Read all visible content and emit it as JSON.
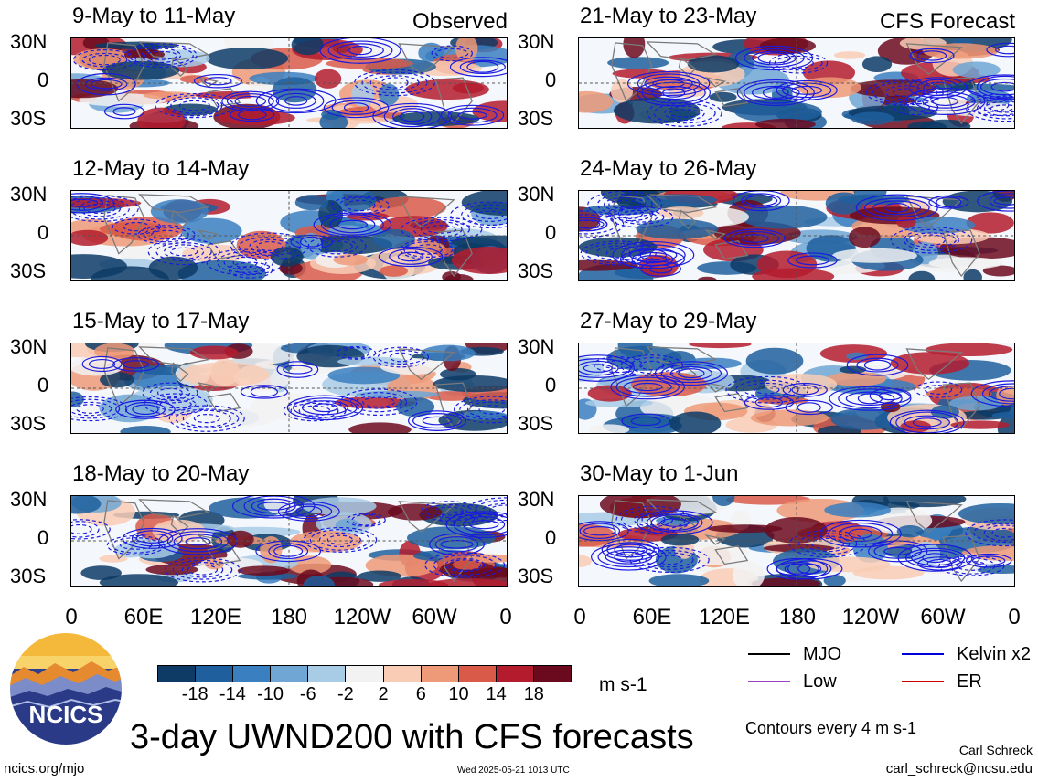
{
  "panels": [
    {
      "title": "9-May to 11-May",
      "tag": "Observed"
    },
    {
      "title": "21-May to 23-May",
      "tag": "CFS Forecast"
    },
    {
      "title": "12-May to 14-May",
      "tag": ""
    },
    {
      "title": "24-May to 26-May",
      "tag": ""
    },
    {
      "title": "15-May to 17-May",
      "tag": ""
    },
    {
      "title": "27-May to 29-May",
      "tag": ""
    },
    {
      "title": "18-May to 20-May",
      "tag": ""
    },
    {
      "title": "30-May to 1-Jun",
      "tag": ""
    }
  ],
  "lat_labels": [
    "30N",
    "0",
    "30S"
  ],
  "lon_labels": [
    "0",
    "60E",
    "120E",
    "180",
    "120W",
    "60W",
    "0"
  ],
  "colorbar": {
    "labels": [
      "-18",
      "-14",
      "-10",
      "-6",
      "-2",
      "2",
      "6",
      "10",
      "14",
      "18"
    ],
    "colors": [
      "#0d3b66",
      "#1f5f9e",
      "#3a7fbf",
      "#6fa6d3",
      "#a8cbe6",
      "#f2f2f2",
      "#f9cdb5",
      "#ee9a78",
      "#d95a49",
      "#b41c2e",
      "#6b0a1f"
    ],
    "units": "m s-1"
  },
  "legend": [
    {
      "label": "MJO",
      "color": "#000000"
    },
    {
      "label": "Kelvin x2",
      "color": "#0000dd"
    },
    {
      "label": "Low",
      "color": "#a040c0"
    },
    {
      "label": "ER",
      "color": "#cc0000"
    }
  ],
  "contours_note": "Contours every 4 m s-1",
  "title": "3-day UWND200 with CFS forecasts",
  "website": "ncics.org/mjo",
  "timestamp": "Wed 2025-05-21 1013 UTC",
  "author": "Carl Schreck",
  "email": "carl_schreck@ncsu.edu",
  "logo_text": "NCICS"
}
